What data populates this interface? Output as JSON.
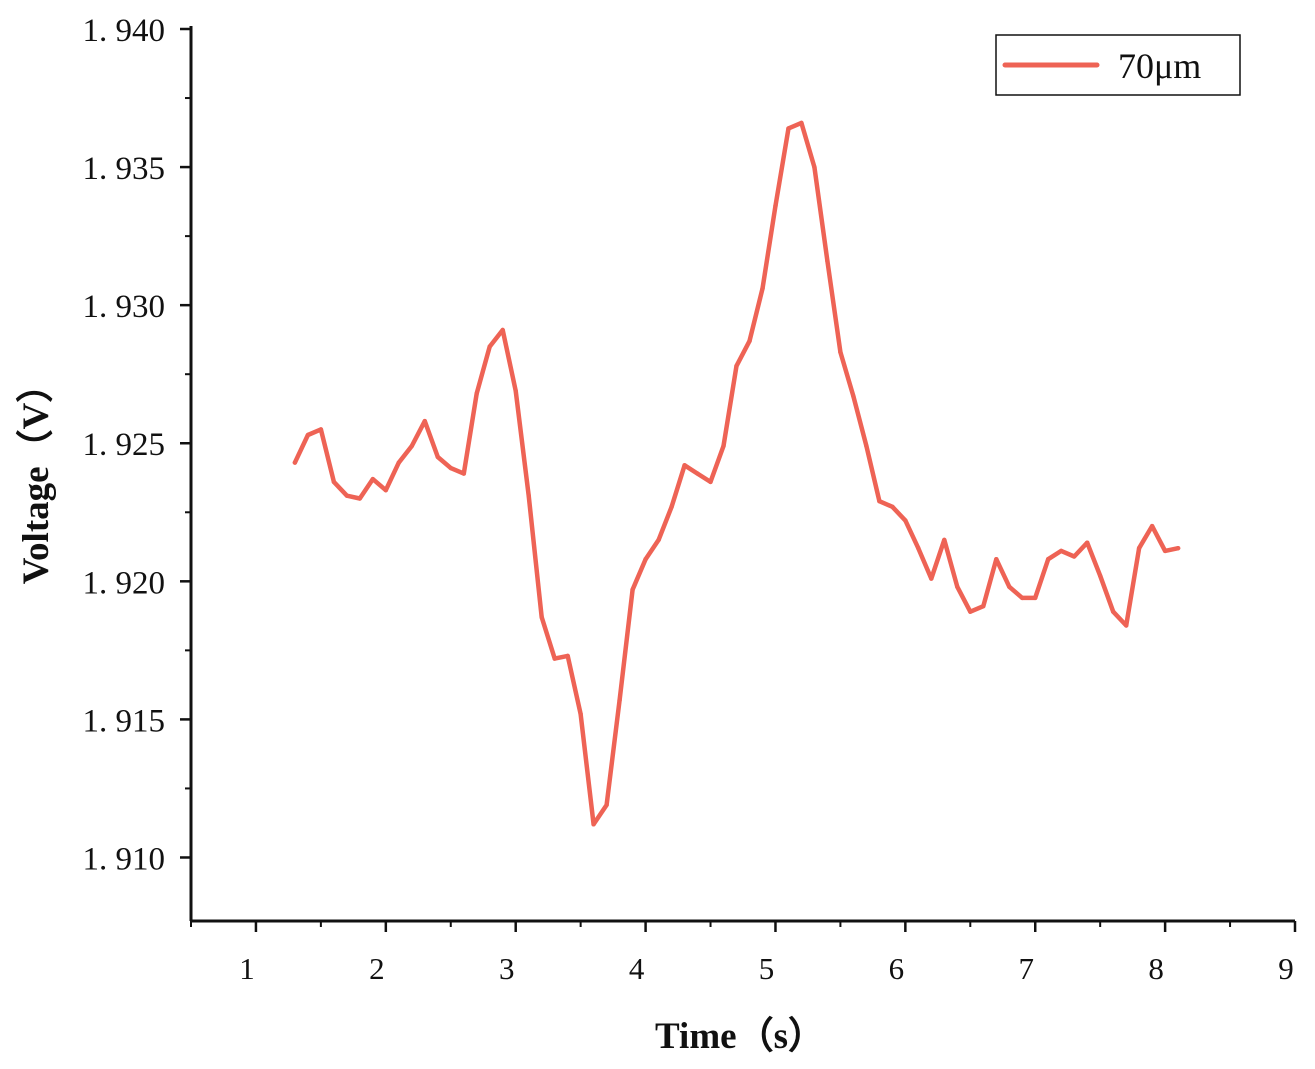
{
  "chart_data": {
    "type": "line",
    "xlabel": "Time（s）",
    "ylabel": "Voltage（V）",
    "xlim": [
      0.5,
      9
    ],
    "ylim": [
      1.9077,
      1.94
    ],
    "x_ticks": [
      {
        "value": 1,
        "label": "1"
      },
      {
        "value": 2,
        "label": "2"
      },
      {
        "value": 3,
        "label": "3"
      },
      {
        "value": 4,
        "label": "4"
      },
      {
        "value": 5,
        "label": "5"
      },
      {
        "value": 6,
        "label": "6"
      },
      {
        "value": 7,
        "label": "7"
      },
      {
        "value": 8,
        "label": "8"
      },
      {
        "value": 9,
        "label": "9"
      }
    ],
    "y_ticks": [
      {
        "value": 1.91,
        "label": "1. 910"
      },
      {
        "value": 1.915,
        "label": "1. 915"
      },
      {
        "value": 1.92,
        "label": "1. 920"
      },
      {
        "value": 1.925,
        "label": "1. 925"
      },
      {
        "value": 1.93,
        "label": "1. 930"
      },
      {
        "value": 1.935,
        "label": "1. 935"
      },
      {
        "value": 1.94,
        "label": "1. 940"
      }
    ],
    "grid": false,
    "legend_position": "top-right",
    "series": [
      {
        "name": "70μm",
        "color": "#ee6355",
        "x": [
          1.3,
          1.4,
          1.5,
          1.6,
          1.7,
          1.8,
          1.9,
          2.0,
          2.1,
          2.2,
          2.3,
          2.4,
          2.5,
          2.6,
          2.7,
          2.8,
          2.9,
          3.0,
          3.1,
          3.2,
          3.3,
          3.4,
          3.5,
          3.6,
          3.7,
          3.8,
          3.9,
          4.0,
          4.1,
          4.2,
          4.3,
          4.4,
          4.5,
          4.6,
          4.7,
          4.8,
          4.9,
          5.0,
          5.1,
          5.2,
          5.3,
          5.4,
          5.5,
          5.6,
          5.7,
          5.8,
          5.9,
          6.0,
          6.1,
          6.2,
          6.3,
          6.4,
          6.5,
          6.6,
          6.7,
          6.8,
          6.9,
          7.0,
          7.1,
          7.2,
          7.3,
          7.4,
          7.5,
          7.6,
          7.7,
          7.8,
          7.9,
          8.0,
          8.1
        ],
        "values": [
          1.9243,
          1.9253,
          1.9255,
          1.9236,
          1.9231,
          1.923,
          1.9237,
          1.9233,
          1.9243,
          1.9249,
          1.9258,
          1.9245,
          1.9241,
          1.9239,
          1.9268,
          1.9285,
          1.9291,
          1.9269,
          1.9231,
          1.9187,
          1.9172,
          1.9173,
          1.9152,
          1.9112,
          1.9119,
          1.9157,
          1.9197,
          1.9208,
          1.9215,
          1.9227,
          1.9242,
          1.9239,
          1.9236,
          1.9249,
          1.9278,
          1.9287,
          1.9306,
          1.9336,
          1.9364,
          1.9366,
          1.935,
          1.9316,
          1.9283,
          1.9267,
          1.9249,
          1.9229,
          1.9227,
          1.9222,
          1.9212,
          1.9201,
          1.9215,
          1.9198,
          1.9189,
          1.9191,
          1.9208,
          1.9198,
          1.9194,
          1.9194,
          1.9208,
          1.9211,
          1.9209,
          1.9214,
          1.9202,
          1.9189,
          1.9184,
          1.9212,
          1.922,
          1.9211,
          1.9212
        ]
      }
    ]
  }
}
